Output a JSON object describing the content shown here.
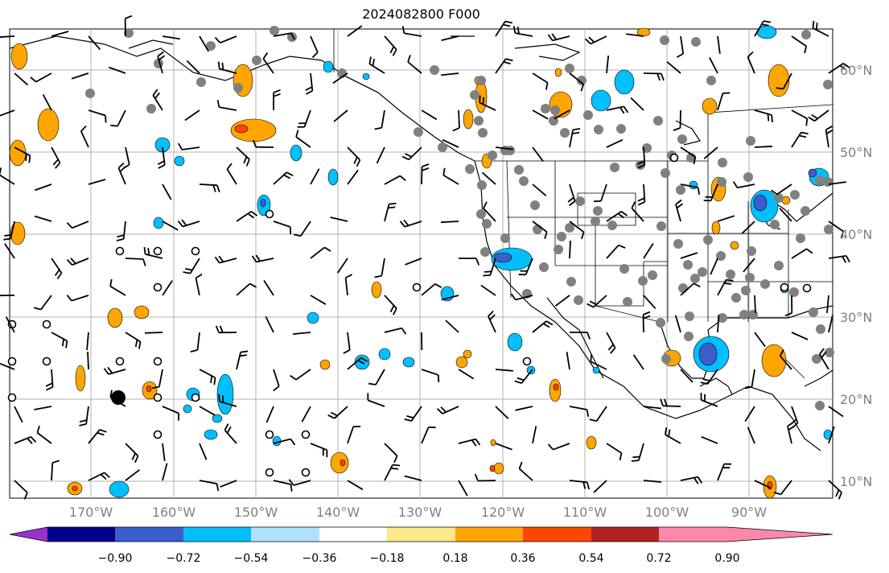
{
  "title": "2024082800 F000",
  "map": {
    "lat_labels": [
      "60°N",
      "50°N",
      "40°N",
      "30°N",
      "20°N",
      "10°N"
    ],
    "lon_labels": [
      "170°W",
      "160°W",
      "150°W",
      "140°W",
      "130°W",
      "120°W",
      "110°W",
      "100°W",
      "90°W"
    ]
  },
  "colorbar": {
    "colors": [
      "#9932cc",
      "#00008b",
      "#3a5fcd",
      "#00bfff",
      "#b0e2ff",
      "#ffffff",
      "#fce98a",
      "#ffa500",
      "#ff4500",
      "#b22222",
      "#ff88aa"
    ],
    "tick_labels": [
      "−0.90",
      "−0.72",
      "−0.54",
      "−0.36",
      "−0.18",
      "0.18",
      "0.36",
      "0.54",
      "0.72",
      "0.90"
    ]
  },
  "colors": {
    "grid": "#b0b0b0",
    "station": "#808080",
    "coast": "#000000"
  }
}
